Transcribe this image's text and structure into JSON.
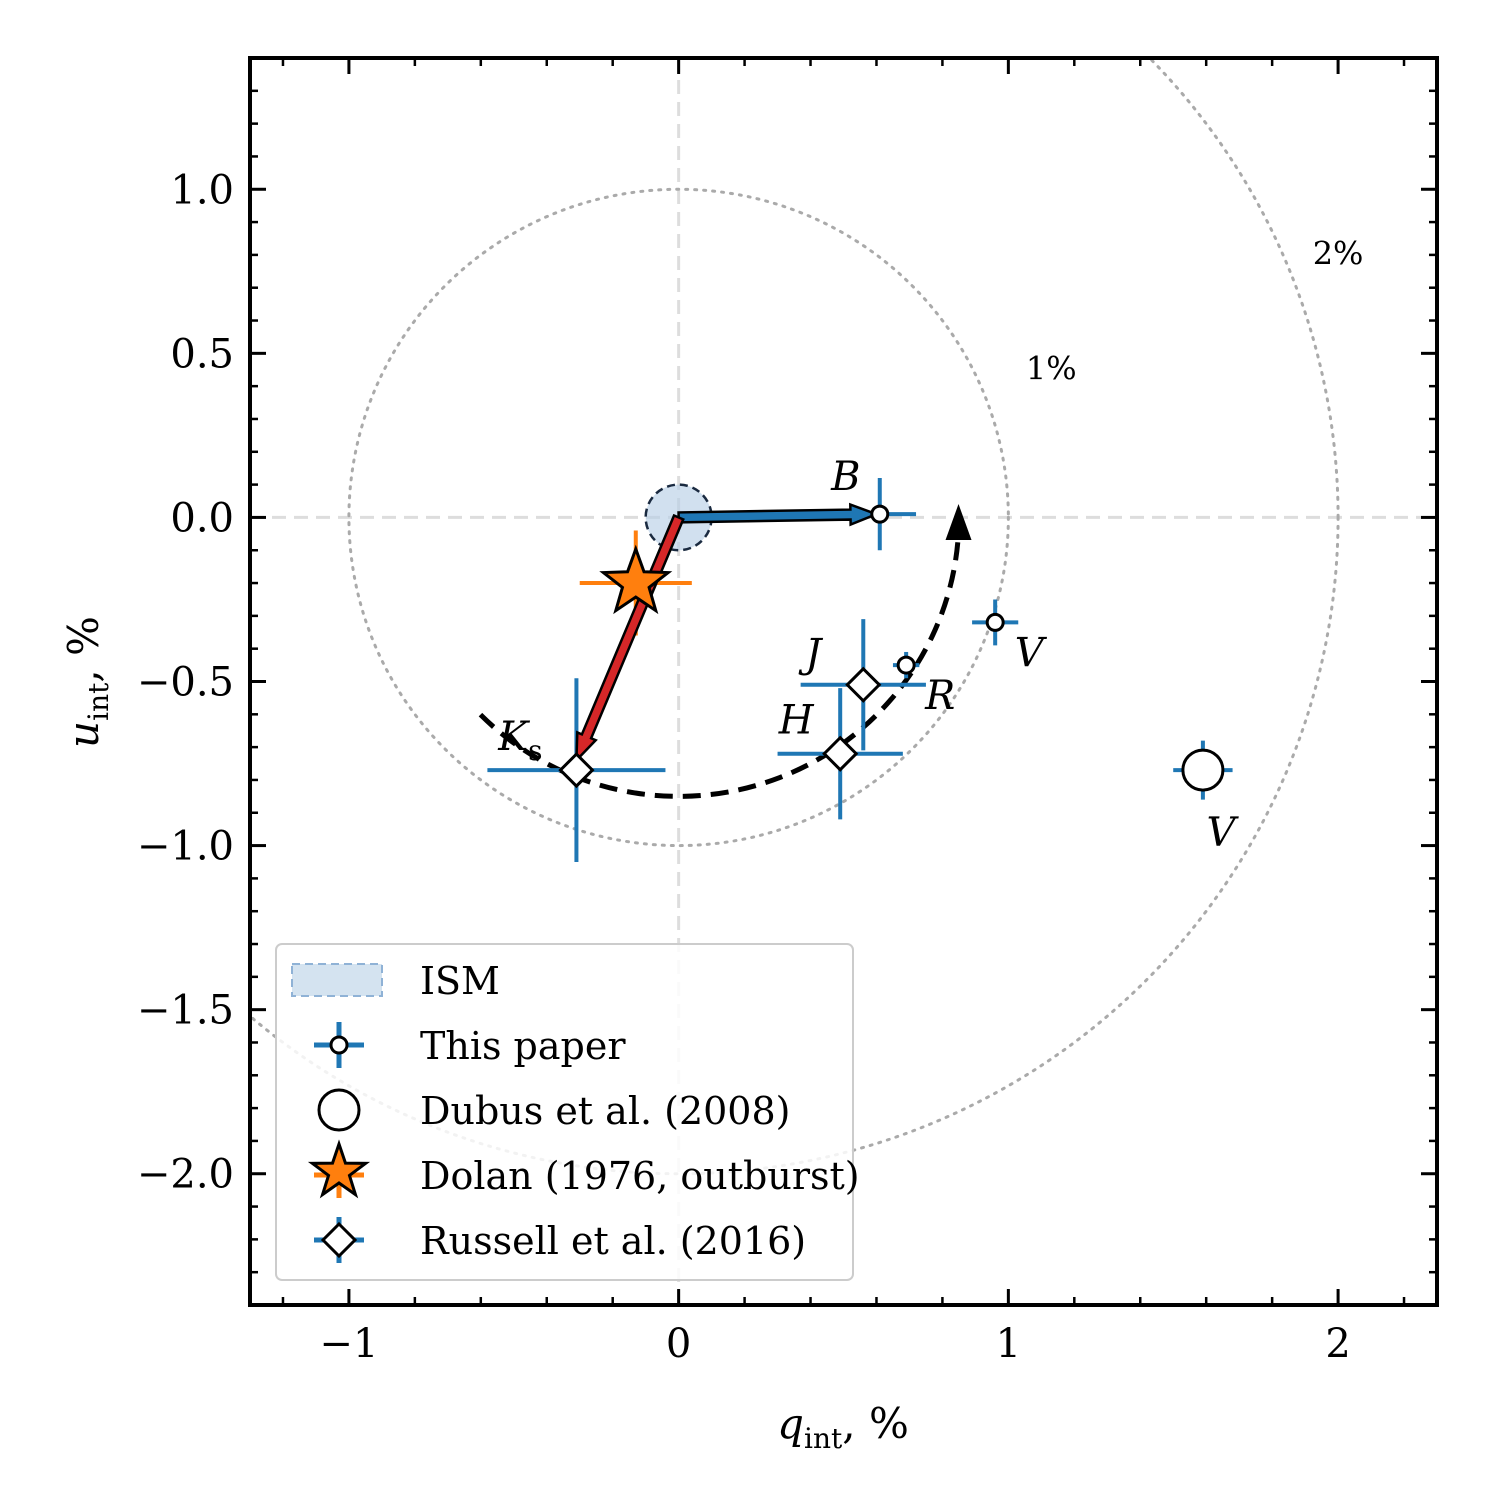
{
  "chart_data": {
    "type": "scatter",
    "xlabel": "q_int, %",
    "ylabel": "u_int, %",
    "xlabel_main": "q",
    "xlabel_sub": "int",
    "xlabel_unit": ", %",
    "ylabel_main": "u",
    "ylabel_sub": "int",
    "ylabel_unit": ", %",
    "xlim": [
      -1.3,
      2.3
    ],
    "ylim": [
      -2.4,
      1.4
    ],
    "xticks": [
      -1,
      0,
      1,
      2
    ],
    "xtick_labels": [
      "−1",
      "0",
      "1",
      "2"
    ],
    "yticks": [
      1.0,
      0.5,
      0.0,
      -0.5,
      -1.0,
      -1.5,
      -2.0
    ],
    "ytick_labels": [
      "1.0",
      "0.5",
      "0.0",
      "−0.5",
      "−1.0",
      "−1.5",
      "−2.0"
    ],
    "reference_circles": [
      {
        "radius": 1,
        "label": "1%",
        "label_x": 1.13,
        "label_y": 0.42
      },
      {
        "radius": 2,
        "label": "2%",
        "label_x": 2.0,
        "label_y": 0.77
      }
    ],
    "ism": {
      "q": 0.0,
      "u": 0.0,
      "radius": 0.1,
      "color": "#b8d0e6"
    },
    "series": [
      {
        "name": "This paper",
        "points": [
          {
            "label": "B",
            "q": 0.61,
            "u": 0.01,
            "q_err": 0.11,
            "u_err": 0.11
          },
          {
            "label": "V",
            "q": 0.96,
            "u": -0.32,
            "q_err": 0.07,
            "u_err": 0.07
          },
          {
            "label": "R",
            "q": 0.69,
            "u": -0.45,
            "q_err": 0.04,
            "u_err": 0.04
          }
        ]
      },
      {
        "name": "Dubus et al. (2008)",
        "points": [
          {
            "label": "V",
            "q": 1.59,
            "u": -0.77,
            "q_err": 0.09,
            "u_err": 0.09
          }
        ]
      },
      {
        "name": "Dolan (1976, outburst)",
        "points": [
          {
            "label": "",
            "q": -0.13,
            "u": -0.2,
            "q_err": 0.17,
            "u_err": 0.16
          }
        ]
      },
      {
        "name": "Russell et al. (2016)",
        "points": [
          {
            "label": "J",
            "q": 0.56,
            "u": -0.51,
            "q_err": 0.19,
            "u_err": 0.2
          },
          {
            "label": "H",
            "q": 0.49,
            "u": -0.72,
            "q_err": 0.19,
            "u_err": 0.2
          },
          {
            "label": "K",
            "label_sub": "s",
            "q": -0.31,
            "u": -0.77,
            "q_err": 0.27,
            "u_err": 0.28
          }
        ]
      }
    ],
    "arrows": [
      {
        "from": [
          0,
          0
        ],
        "to": [
          0.6,
          0.01
        ],
        "color": "#1f77b4"
      },
      {
        "from": [
          0,
          0
        ],
        "to": [
          -0.31,
          -0.74
        ],
        "color": "#d62728"
      }
    ],
    "dashed_arc": {
      "center": [
        0,
        0
      ],
      "radius": 0.85,
      "from_deg": 225,
      "to_deg": 357,
      "direction": "counterclockwise"
    },
    "legend": {
      "position": "lower-left",
      "entries": [
        "ISM",
        "This paper",
        "Dubus et al. (2008)",
        "Dolan (1976, outburst)",
        "Russell et al. (2016)"
      ]
    },
    "colors": {
      "errorbar": "#1f77b4",
      "star": "#ff7f0e",
      "ism_fill": "#b8d0e6",
      "red_arrow": "#d62728",
      "grid": "#cccccc",
      "circle": "#aaaaaa"
    }
  }
}
